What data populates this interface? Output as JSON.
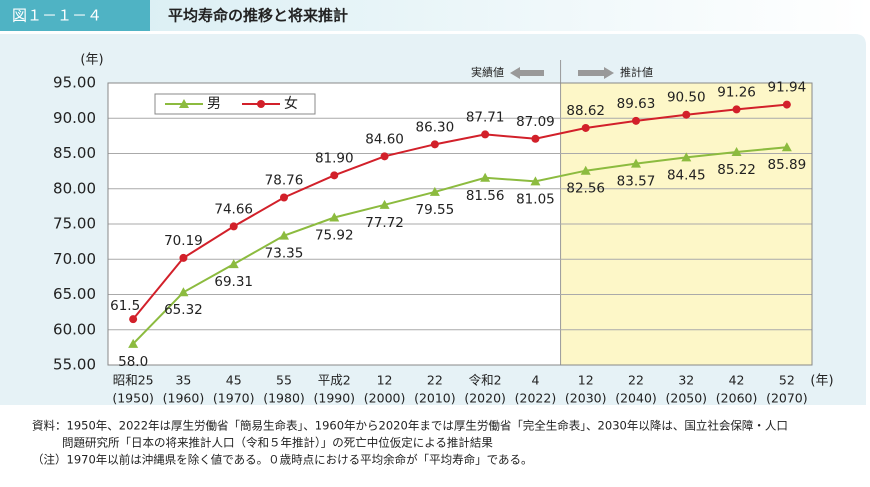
{
  "chart_data": {
    "type": "line",
    "figure_label": "図１－１－４",
    "title": "平均寿命の推移と将来推計",
    "y_unit": "(年)",
    "x_unit": "(年)",
    "actual_label": "実績値",
    "forecast_label": "推計値",
    "forecast_start_index": 9,
    "categories": [
      "昭和25",
      "35",
      "45",
      "55",
      "平成2",
      "12",
      "22",
      "令和2",
      "4",
      "12",
      "22",
      "32",
      "42",
      "52"
    ],
    "category_years": [
      "(1950)",
      "(1960)",
      "(1970)",
      "(1980)",
      "(1990)",
      "(2000)",
      "(2010)",
      "(2020)",
      "(2022)",
      "(2030)",
      "(2040)",
      "(2050)",
      "(2060)",
      "(2070)"
    ],
    "series": [
      {
        "name": "男",
        "color": "#8cbb3f",
        "marker": "triangle",
        "values": [
          58.0,
          65.32,
          69.31,
          73.35,
          75.92,
          77.72,
          79.55,
          81.56,
          81.05,
          82.56,
          83.57,
          84.45,
          85.22,
          85.89
        ],
        "value_labels": [
          "58.0",
          "65.32",
          "69.31",
          "73.35",
          "75.92",
          "77.72",
          "79.55",
          "81.56",
          "81.05",
          "82.56",
          "83.57",
          "84.45",
          "85.22",
          "85.89"
        ]
      },
      {
        "name": "女",
        "color": "#d2202a",
        "marker": "circle",
        "values": [
          61.5,
          70.19,
          74.66,
          78.76,
          81.9,
          84.6,
          86.3,
          87.71,
          87.09,
          88.62,
          89.63,
          90.5,
          91.26,
          91.94
        ],
        "value_labels": [
          "61.5",
          "70.19",
          "74.66",
          "78.76",
          "81.90",
          "84.60",
          "86.30",
          "87.71",
          "87.09",
          "88.62",
          "89.63",
          "90.50",
          "91.26",
          "91.94"
        ]
      }
    ],
    "ylim": [
      55,
      95
    ],
    "yticks": [
      {
        "value": 55,
        "label": "55.00"
      },
      {
        "value": 60,
        "label": "60.00"
      },
      {
        "value": 65,
        "label": "65.00"
      },
      {
        "value": 70,
        "label": "70.00"
      },
      {
        "value": 75,
        "label": "75.00"
      },
      {
        "value": 80,
        "label": "80.00"
      },
      {
        "value": 85,
        "label": "85.00"
      },
      {
        "value": 90,
        "label": "90.00"
      },
      {
        "value": 95,
        "label": "95.00"
      }
    ],
    "grid": true,
    "notes": [
      "資料：1950年、2022年は厚生労働省「簡易生命表」、1960年から2020年までは厚生労働省「完全生命表」、2030年以降は、国立社会保障・人口",
      "問題研究所「日本の将来推計人口（令和５年推計）」の死亡中位仮定による推計結果",
      "（注）1970年以前は沖縄県を除く値である。０歳時点における平均余命が「平均寿命」である。"
    ]
  }
}
